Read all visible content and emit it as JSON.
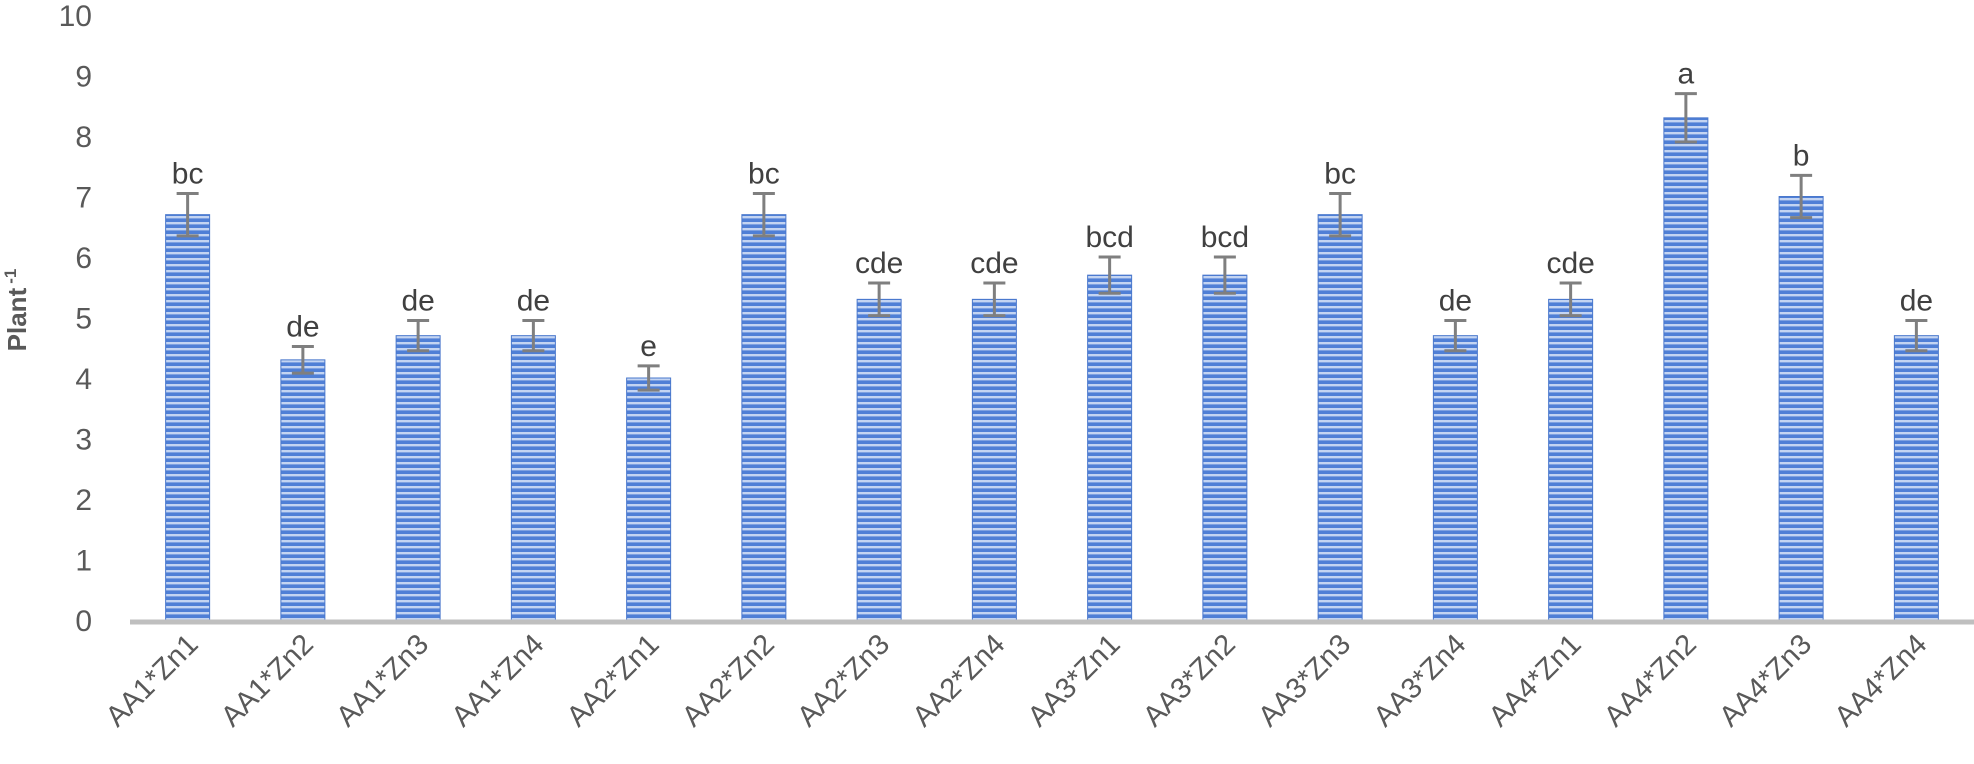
{
  "chart_data": {
    "type": "bar",
    "ylabel": "Plant",
    "ylabel_superscript": "-1",
    "ylim": [
      0,
      10
    ],
    "yticks": [
      "0",
      "1",
      "2",
      "3",
      "4",
      "5",
      "6",
      "7",
      "8",
      "9",
      "10"
    ],
    "grid": false,
    "legend": "none",
    "categories": [
      "AA1*Zn1",
      "AA1*Zn2",
      "AA1*Zn3",
      "AA1*Zn4",
      "AA2*Zn1",
      "AA2*Zn2",
      "AA2*Zn3",
      "AA2*Zn4",
      "AA3*Zn1",
      "AA3*Zn2",
      "AA3*Zn3",
      "AA3*Zn4",
      "AA4*Zn1",
      "AA4*Zn2",
      "AA4*Zn3",
      "AA4*Zn4"
    ],
    "values": [
      6.7,
      4.3,
      4.7,
      4.7,
      4.0,
      6.7,
      5.3,
      5.3,
      5.7,
      5.7,
      6.7,
      4.7,
      5.3,
      8.3,
      7.0,
      4.7
    ],
    "error": [
      0.35,
      0.22,
      0.25,
      0.25,
      0.2,
      0.35,
      0.27,
      0.27,
      0.3,
      0.3,
      0.35,
      0.25,
      0.27,
      0.4,
      0.35,
      0.25
    ],
    "labels": [
      "bc",
      "de",
      "de",
      "de",
      "e",
      "bc",
      "cde",
      "cde",
      "bcd",
      "bcd",
      "bc",
      "de",
      "cde",
      "a",
      "b",
      "de"
    ],
    "colors": {
      "bar_fill": "#4f7fd6",
      "bar_stripe_light": "#c3d4f2",
      "axis_line": "#bfbfbf",
      "error_bar": "#7f7f7f",
      "tick_text": "#595959",
      "label_text": "#404040"
    }
  }
}
